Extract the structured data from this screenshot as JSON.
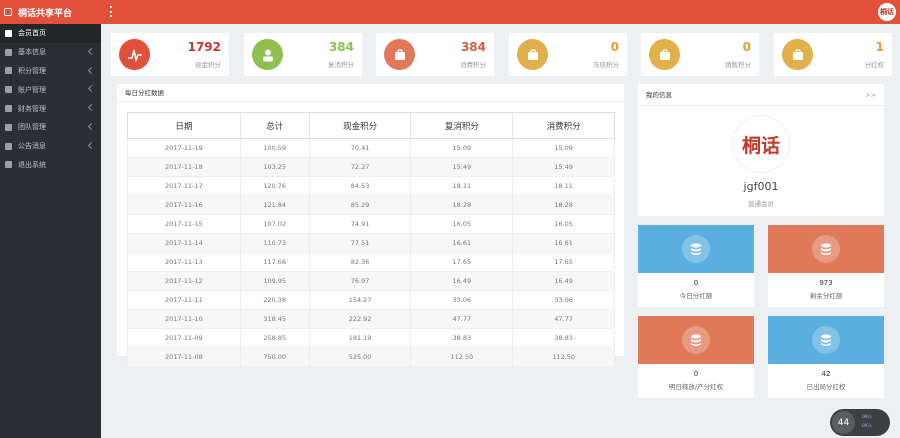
{
  "header": {
    "brand": "桐话共享平台",
    "avatar_text": "桐话"
  },
  "sidebar": {
    "items": [
      {
        "label": "会员首页",
        "chevron": false,
        "active": true
      },
      {
        "label": "基本信息",
        "chevron": true
      },
      {
        "label": "积分管理",
        "chevron": true
      },
      {
        "label": "账户管理",
        "chevron": true
      },
      {
        "label": "财务管理",
        "chevron": true
      },
      {
        "label": "团队管理",
        "chevron": true
      },
      {
        "label": "公告消息",
        "chevron": true
      },
      {
        "label": "退出系统",
        "chevron": false
      }
    ]
  },
  "stats": [
    {
      "value": "1792",
      "label": "现金积分",
      "color": "#e2503c",
      "value_color": "#c0392b"
    },
    {
      "value": "384",
      "label": "复消积分",
      "color": "#8cc152",
      "value_color": "#8cc152"
    },
    {
      "value": "384",
      "label": "消费积分",
      "color": "#e0785a",
      "value_color": "#d35f44"
    },
    {
      "value": "0",
      "label": "冻结积分",
      "color": "#e2b04a",
      "value_color": "#e0a030"
    },
    {
      "value": "0",
      "label": "销售积分",
      "color": "#e2b04a",
      "value_color": "#e0a030"
    },
    {
      "value": "1",
      "label": "分红权",
      "color": "#e2b04a",
      "value_color": "#e0a030"
    }
  ],
  "table": {
    "title": "每日分红数据",
    "columns": [
      "日期",
      "总计",
      "现金积分",
      "复消积分",
      "消费积分"
    ],
    "rows": [
      [
        "2017-11-19",
        "100.59",
        "70.41",
        "15.09",
        "15.09"
      ],
      [
        "2017-11-18",
        "103.25",
        "72.27",
        "15.49",
        "15.49"
      ],
      [
        "2017-11-17",
        "120.76",
        "84.53",
        "18.11",
        "18.11"
      ],
      [
        "2017-11-16",
        "121.84",
        "85.29",
        "18.28",
        "18.28"
      ],
      [
        "2017-11-15",
        "107.02",
        "74.91",
        "16.05",
        "16.05"
      ],
      [
        "2017-11-14",
        "110.73",
        "77.51",
        "16.61",
        "16.61"
      ],
      [
        "2017-11-13",
        "117.66",
        "82.36",
        "17.65",
        "17.65"
      ],
      [
        "2017-11-12",
        "109.95",
        "76.97",
        "16.49",
        "16.49"
      ],
      [
        "2017-11-11",
        "220.38",
        "154.27",
        "33.06",
        "33.06"
      ],
      [
        "2017-11-10",
        "318.45",
        "222.92",
        "47.77",
        "47.77"
      ],
      [
        "2017-11-09",
        "258.85",
        "181.19",
        "38.83",
        "38.83"
      ],
      [
        "2017-11-08",
        "750.00",
        "525.00",
        "112.50",
        "112.50"
      ]
    ]
  },
  "user": {
    "heading": "我的信息",
    "more": ">>",
    "avatar_text": "桐话",
    "name": "jgf001",
    "role": "普通会员"
  },
  "tiles": [
    {
      "value": "0",
      "label": "今日分红额",
      "color": "#5aaee0"
    },
    {
      "value": "973",
      "label": "剩余分红额",
      "color": "#e0785a"
    },
    {
      "value": "0",
      "label": "明日释放/产分红权",
      "color": "#e0785a"
    },
    {
      "value": "42",
      "label": "已出局分红权",
      "color": "#5aaee0"
    }
  ],
  "float_badge": {
    "value": "44",
    "line1": "0K/s",
    "line2": "0K/s"
  }
}
